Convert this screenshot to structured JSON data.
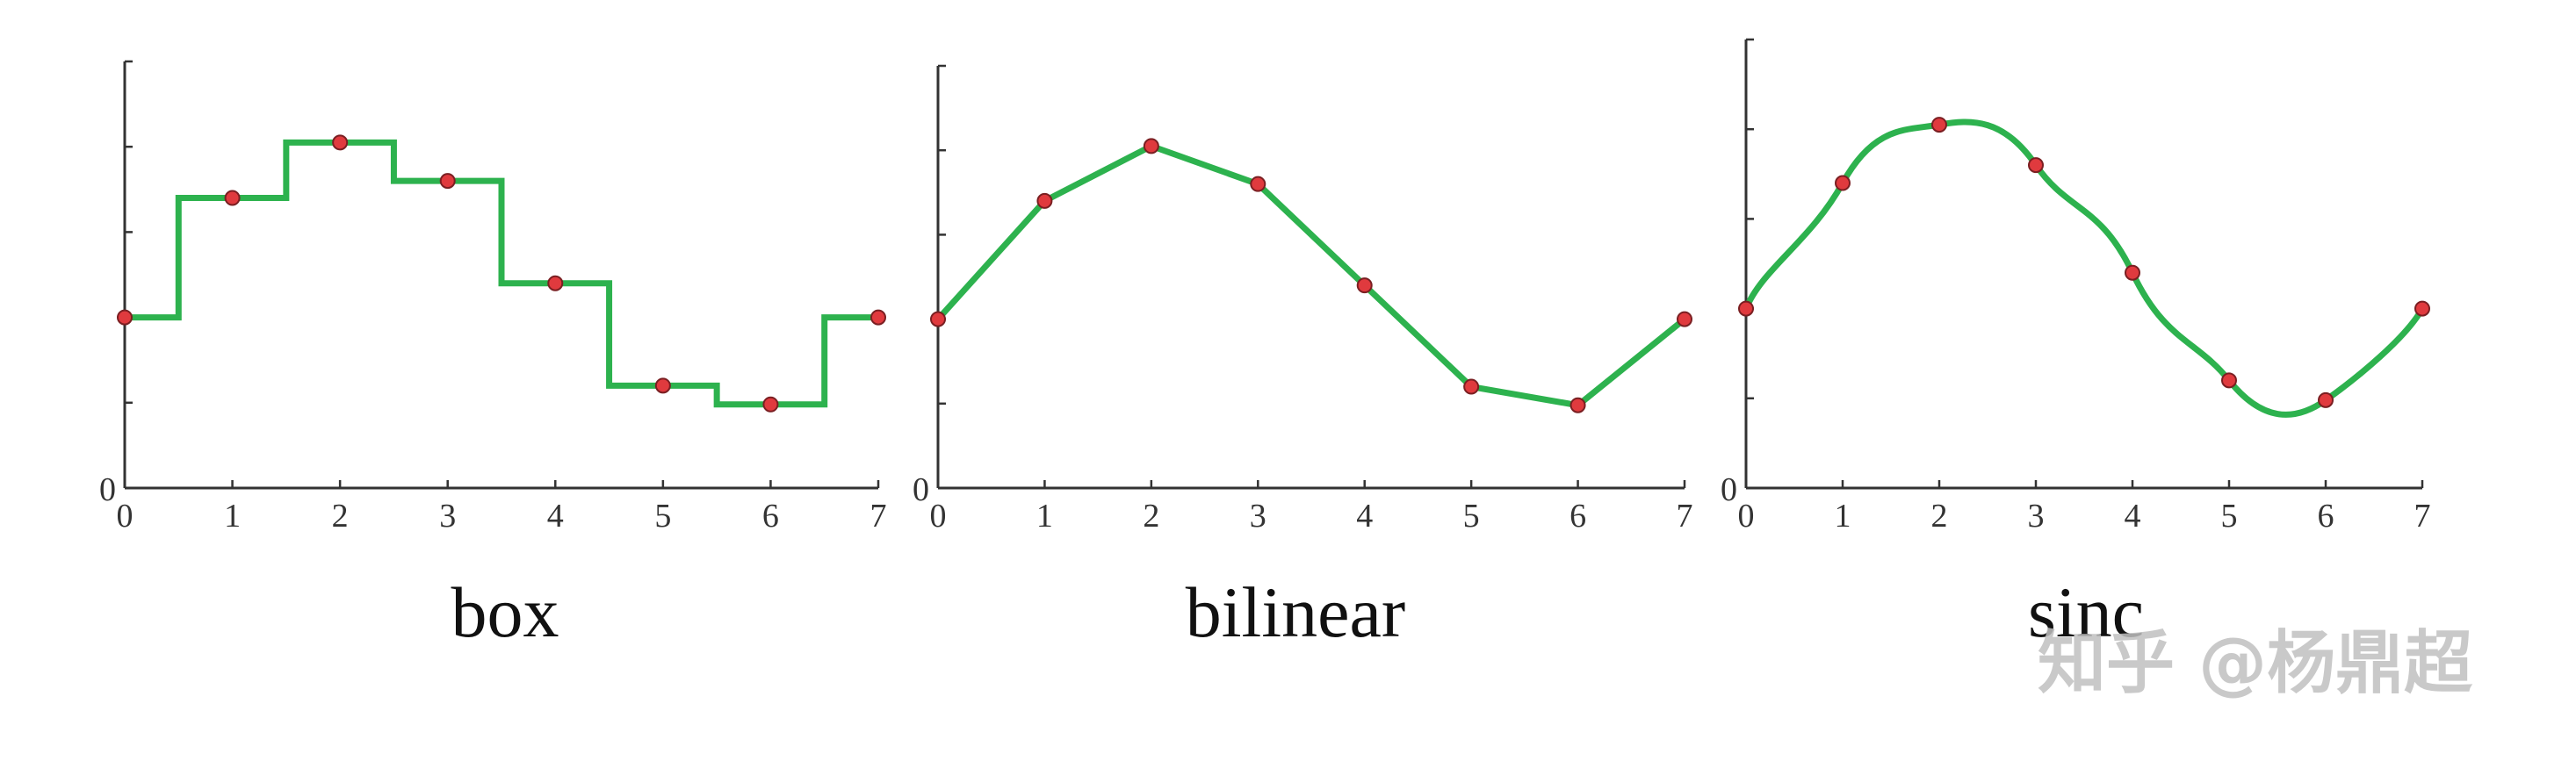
{
  "chart_data": [
    {
      "type": "line",
      "variant": "step",
      "title": "box",
      "x": [
        0,
        1,
        2,
        3,
        4,
        5,
        6,
        7
      ],
      "y": [
        2.0,
        3.4,
        4.05,
        3.6,
        2.4,
        1.2,
        0.98,
        2.0
      ],
      "xticks": [
        "0",
        "1",
        "2",
        "3",
        "4",
        "5",
        "6",
        "7"
      ],
      "ytick_values": [
        1,
        2,
        3,
        4
      ],
      "y_zero_label": "0",
      "xlim": [
        0,
        7
      ],
      "ylim": [
        0,
        5
      ],
      "grid": false,
      "line_color": "#2db24e",
      "marker_color": "#e03a3e"
    },
    {
      "type": "line",
      "variant": "linear",
      "title": "bilinear",
      "x": [
        0,
        1,
        2,
        3,
        4,
        5,
        6,
        7
      ],
      "y": [
        2.0,
        3.4,
        4.05,
        3.6,
        2.4,
        1.2,
        0.98,
        2.0
      ],
      "xticks": [
        "0",
        "1",
        "2",
        "3",
        "4",
        "5",
        "6",
        "7"
      ],
      "ytick_values": [
        1,
        2,
        3,
        4
      ],
      "y_zero_label": "0",
      "xlim": [
        0,
        7
      ],
      "ylim": [
        0,
        5
      ],
      "grid": false,
      "line_color": "#2db24e",
      "marker_color": "#e03a3e"
    },
    {
      "type": "line",
      "variant": "smooth",
      "title": "sinc",
      "x": [
        0,
        1,
        2,
        3,
        4,
        5,
        6,
        7
      ],
      "y": [
        2.0,
        3.4,
        4.05,
        3.6,
        2.4,
        1.2,
        0.98,
        2.0
      ],
      "xticks": [
        "0",
        "1",
        "2",
        "3",
        "4",
        "5",
        "6",
        "7"
      ],
      "ytick_values": [
        1,
        2,
        3,
        4
      ],
      "y_zero_label": "0",
      "xlim": [
        0,
        7
      ],
      "ylim": [
        0,
        5
      ],
      "grid": false,
      "line_color": "#2db24e",
      "marker_color": "#e03a3e"
    }
  ],
  "watermark": {
    "text": "知乎 @杨鼎超"
  },
  "colors": {
    "axis": "#333333",
    "line": "#2db24e",
    "marker": "#e03a3e",
    "marker_edge": "#7a1f22"
  }
}
